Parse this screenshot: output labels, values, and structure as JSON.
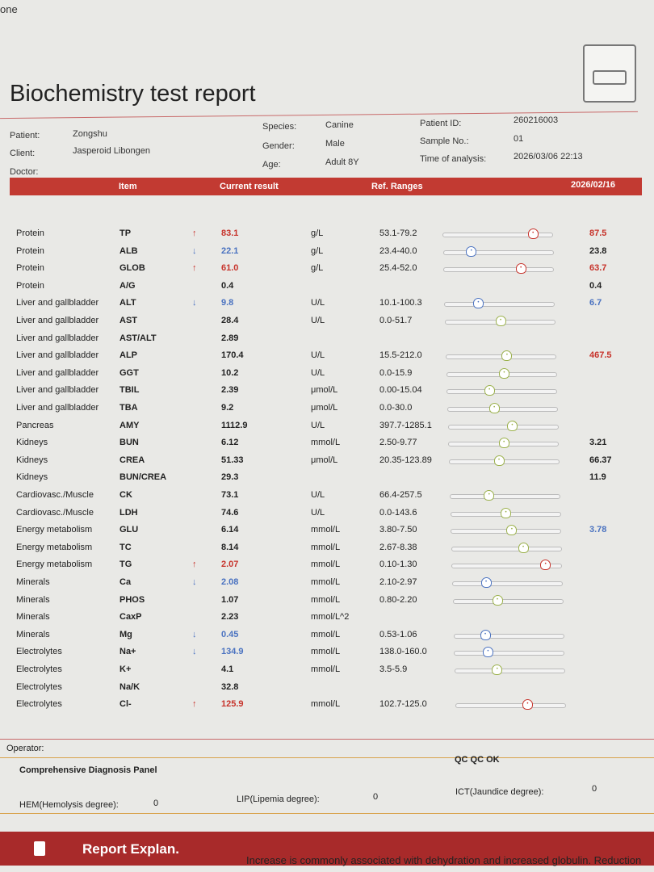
{
  "corner_text": "one",
  "title": "Biochemistry test report",
  "info": {
    "patient_label": "Patient:",
    "patient": "Zongshu",
    "client_label": "Client:",
    "client": "Jasperoid Libongen",
    "doctor_label": "Doctor:",
    "species_label": "Species:",
    "species": "Canine",
    "gender_label": "Gender:",
    "gender": "Male",
    "age_label": "Age:",
    "age": "Adult 8Y",
    "pid_label": "Patient ID:",
    "pid": "260216003",
    "sample_label": "Sample No.:",
    "sample": "01",
    "time_label": "Time of analysis:",
    "time": "2026/03/06 22:13"
  },
  "header": {
    "item": "Item",
    "current": "Current result",
    "ref": "Ref. Ranges",
    "prev_date": "2026/02/16"
  },
  "colors": {
    "high": "#c7332b",
    "low": "#4a72c0",
    "normal": "#9ab04a",
    "header": "#c23a32"
  },
  "rows": [
    {
      "cat": "Protein",
      "item": "TP",
      "flag": "up",
      "val": "83.1",
      "unit": "g/L",
      "range": "53.1-79.2",
      "pos": 0.82,
      "prev": "87.5",
      "pflag": "up"
    },
    {
      "cat": "Protein",
      "item": "ALB",
      "flag": "down",
      "val": "22.1",
      "unit": "g/L",
      "range": "23.4-40.0",
      "pos": 0.25,
      "prev": "23.8",
      "pflag": ""
    },
    {
      "cat": "Protein",
      "item": "GLOB",
      "flag": "up",
      "val": "61.0",
      "unit": "g/L",
      "range": "25.4-52.0",
      "pos": 0.7,
      "prev": "63.7",
      "pflag": "up"
    },
    {
      "cat": "Protein",
      "item": "A/G",
      "flag": "",
      "val": "0.4",
      "unit": "",
      "range": "",
      "pos": null,
      "prev": "0.4",
      "pflag": ""
    },
    {
      "cat": "Liver and gallbladder",
      "item": "ALT",
      "flag": "down",
      "val": "9.8",
      "unit": "U/L",
      "range": "10.1-100.3",
      "pos": 0.3,
      "prev": "6.7",
      "pflag": "down"
    },
    {
      "cat": "Liver and gallbladder",
      "item": "AST",
      "flag": "",
      "val": "28.4",
      "unit": "U/L",
      "range": "0.0-51.7",
      "pos": 0.5,
      "prev": "",
      "pflag": ""
    },
    {
      "cat": "Liver and gallbladder",
      "item": "AST/ALT",
      "flag": "",
      "val": "2.89",
      "unit": "",
      "range": "",
      "pos": null,
      "prev": "",
      "pflag": ""
    },
    {
      "cat": "Liver and gallbladder",
      "item": "ALP",
      "flag": "",
      "val": "170.4",
      "unit": "U/L",
      "range": "15.5-212.0",
      "pos": 0.55,
      "prev": "467.5",
      "pflag": "up"
    },
    {
      "cat": "Liver and gallbladder",
      "item": "GGT",
      "flag": "",
      "val": "10.2",
      "unit": "U/L",
      "range": "0.0-15.9",
      "pos": 0.52,
      "prev": "",
      "pflag": ""
    },
    {
      "cat": "Liver and gallbladder",
      "item": "TBIL",
      "flag": "",
      "val": "2.39",
      "unit": "μmol/L",
      "range": "0.00-15.04",
      "pos": 0.38,
      "prev": "",
      "pflag": ""
    },
    {
      "cat": "Liver and gallbladder",
      "item": "TBA",
      "flag": "",
      "val": "9.2",
      "unit": "μmol/L",
      "range": "0.0-30.0",
      "pos": 0.42,
      "prev": "",
      "pflag": ""
    },
    {
      "cat": "Pancreas",
      "item": "AMY",
      "flag": "",
      "val": "1112.9",
      "unit": "U/L",
      "range": "397.7-1285.1",
      "pos": 0.58,
      "prev": "",
      "pflag": ""
    },
    {
      "cat": "Kidneys",
      "item": "BUN",
      "flag": "",
      "val": "6.12",
      "unit": "mmol/L",
      "range": "2.50-9.77",
      "pos": 0.5,
      "prev": "3.21",
      "pflag": ""
    },
    {
      "cat": "Kidneys",
      "item": "CREA",
      "flag": "",
      "val": "51.33",
      "unit": "μmol/L",
      "range": "20.35-123.89",
      "pos": 0.45,
      "prev": "66.37",
      "pflag": ""
    },
    {
      "cat": "Kidneys",
      "item": "BUN/CREA",
      "flag": "",
      "val": "29.3",
      "unit": "",
      "range": "",
      "pos": null,
      "prev": "11.9",
      "pflag": ""
    },
    {
      "cat": "Cardiovasc./Muscle",
      "item": "CK",
      "flag": "",
      "val": "73.1",
      "unit": "U/L",
      "range": "66.4-257.5",
      "pos": 0.35,
      "prev": "",
      "pflag": ""
    },
    {
      "cat": "Cardiovasc./Muscle",
      "item": "LDH",
      "flag": "",
      "val": "74.6",
      "unit": "U/L",
      "range": "0.0-143.6",
      "pos": 0.5,
      "prev": "",
      "pflag": ""
    },
    {
      "cat": "Energy metabolism",
      "item": "GLU",
      "flag": "",
      "val": "6.14",
      "unit": "mmol/L",
      "range": "3.80-7.50",
      "pos": 0.55,
      "prev": "3.78",
      "pflag": "down"
    },
    {
      "cat": "Energy metabolism",
      "item": "TC",
      "flag": "",
      "val": "8.14",
      "unit": "mmol/L",
      "range": "2.67-8.38",
      "pos": 0.65,
      "prev": "",
      "pflag": ""
    },
    {
      "cat": "Energy metabolism",
      "item": "TG",
      "flag": "up",
      "val": "2.07",
      "unit": "mmol/L",
      "range": "0.10-1.30",
      "pos": 0.85,
      "prev": "",
      "pflag": ""
    },
    {
      "cat": "Minerals",
      "item": "Ca",
      "flag": "down",
      "val": "2.08",
      "unit": "mmol/L",
      "range": "2.10-2.97",
      "pos": 0.3,
      "prev": "",
      "pflag": ""
    },
    {
      "cat": "Minerals",
      "item": "PHOS",
      "flag": "",
      "val": "1.07",
      "unit": "mmol/L",
      "range": "0.80-2.20",
      "pos": 0.4,
      "prev": "",
      "pflag": ""
    },
    {
      "cat": "Minerals",
      "item": "CaxP",
      "flag": "",
      "val": "2.23",
      "unit": "mmol/L^2",
      "range": "",
      "pos": null,
      "prev": "",
      "pflag": ""
    },
    {
      "cat": "Minerals",
      "item": "Mg",
      "flag": "down",
      "val": "0.45",
      "unit": "mmol/L",
      "range": "0.53-1.06",
      "pos": 0.28,
      "prev": "",
      "pflag": ""
    },
    {
      "cat": "Electrolytes",
      "item": "Na+",
      "flag": "down",
      "val": "134.9",
      "unit": "mmol/L",
      "range": "138.0-160.0",
      "pos": 0.3,
      "prev": "",
      "pflag": ""
    },
    {
      "cat": "Electrolytes",
      "item": "K+",
      "flag": "",
      "val": "4.1",
      "unit": "mmol/L",
      "range": "3.5-5.9",
      "pos": 0.38,
      "prev": "",
      "pflag": ""
    },
    {
      "cat": "Electrolytes",
      "item": "Na/K",
      "flag": "",
      "val": "32.8",
      "unit": "",
      "range": "",
      "pos": null,
      "prev": "",
      "pflag": ""
    },
    {
      "cat": "Electrolytes",
      "item": "Cl-",
      "flag": "up",
      "val": "125.9",
      "unit": "mmol/L",
      "range": "102.7-125.0",
      "pos": 0.65,
      "prev": "",
      "pflag": ""
    }
  ],
  "footer": {
    "operator": "Operator:",
    "panel": "Comprehensive Diagnosis Panel",
    "qc": "QC QC OK",
    "hem_label": "HEM(Hemolysis degree):",
    "hem": "0",
    "lip_label": "LIP(Lipemia degree):",
    "lip": "0",
    "ict_label": "ICT(Jaundice degree):",
    "ict": "0"
  },
  "explan": {
    "title": "Report Explan.",
    "text": "Increase is commonly associated with dehydration and increased globulin. Reduction"
  }
}
